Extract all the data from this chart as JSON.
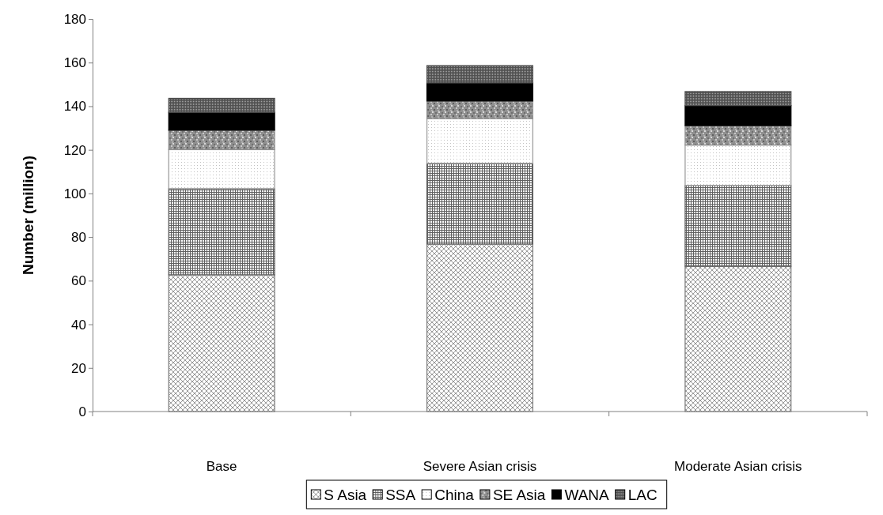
{
  "chart_data": {
    "type": "bar",
    "stacked": true,
    "ylabel": "Number (million)",
    "categories": [
      "Base",
      "Severe Asian crisis",
      "Moderate Asian crisis"
    ],
    "ylim": [
      0,
      180
    ],
    "yticks": [
      0,
      20,
      40,
      60,
      80,
      100,
      120,
      140,
      160,
      180
    ],
    "legend": "bottom",
    "series": [
      {
        "name": "S Asia",
        "color": "#808080",
        "values": [
          62.7,
          76.8,
          66.6
        ]
      },
      {
        "name": "SSA",
        "color": "#606060",
        "values": [
          39.5,
          37.0,
          37.1
        ]
      },
      {
        "name": "China",
        "color": "#a0a0a0",
        "values": [
          17.9,
          20.5,
          18.5
        ]
      },
      {
        "name": "SE Asia",
        "color": "#909090",
        "values": [
          8.9,
          8.1,
          8.9
        ]
      },
      {
        "name": "WANA",
        "color": "#000000",
        "values": [
          8.2,
          8.3,
          9.2
        ]
      },
      {
        "name": "LAC",
        "color": "#505050",
        "values": [
          6.4,
          7.9,
          6.4
        ]
      }
    ]
  }
}
